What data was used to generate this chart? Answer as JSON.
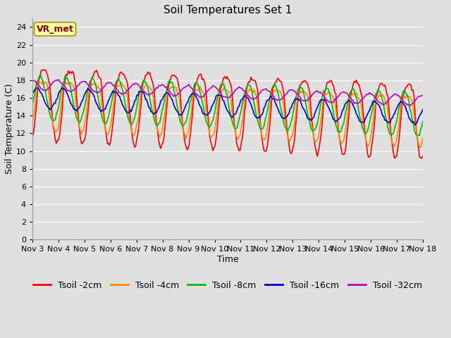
{
  "title": "Soil Temperatures Set 1",
  "xlabel": "Time",
  "ylabel": "Soil Temperature (C)",
  "xlim": [
    0,
    15
  ],
  "ylim": [
    0,
    25
  ],
  "yticks": [
    0,
    2,
    4,
    6,
    8,
    10,
    12,
    14,
    16,
    18,
    20,
    22,
    24
  ],
  "xtick_labels": [
    "Nov 3",
    "Nov 4",
    "Nov 5",
    "Nov 6",
    "Nov 7",
    "Nov 8",
    "Nov 9",
    "Nov 10",
    "Nov 11",
    "Nov 12",
    "Nov 13",
    "Nov 14",
    "Nov 15",
    "Nov 16",
    "Nov 17",
    "Nov 18"
  ],
  "background_color": "#e0e0e0",
  "grid_color": "#ffffff",
  "legend_labels": [
    "Tsoil -2cm",
    "Tsoil -4cm",
    "Tsoil -8cm",
    "Tsoil -16cm",
    "Tsoil -32cm"
  ],
  "line_colors": [
    "#ff0000",
    "#ff8800",
    "#00bb00",
    "#0000cc",
    "#bb00bb"
  ],
  "line_width": 1.2,
  "annotation_text": "VR_met",
  "n_points": 360,
  "days": 15,
  "title_fontsize": 11,
  "label_fontsize": 9,
  "tick_fontsize": 8,
  "legend_fontsize": 9
}
